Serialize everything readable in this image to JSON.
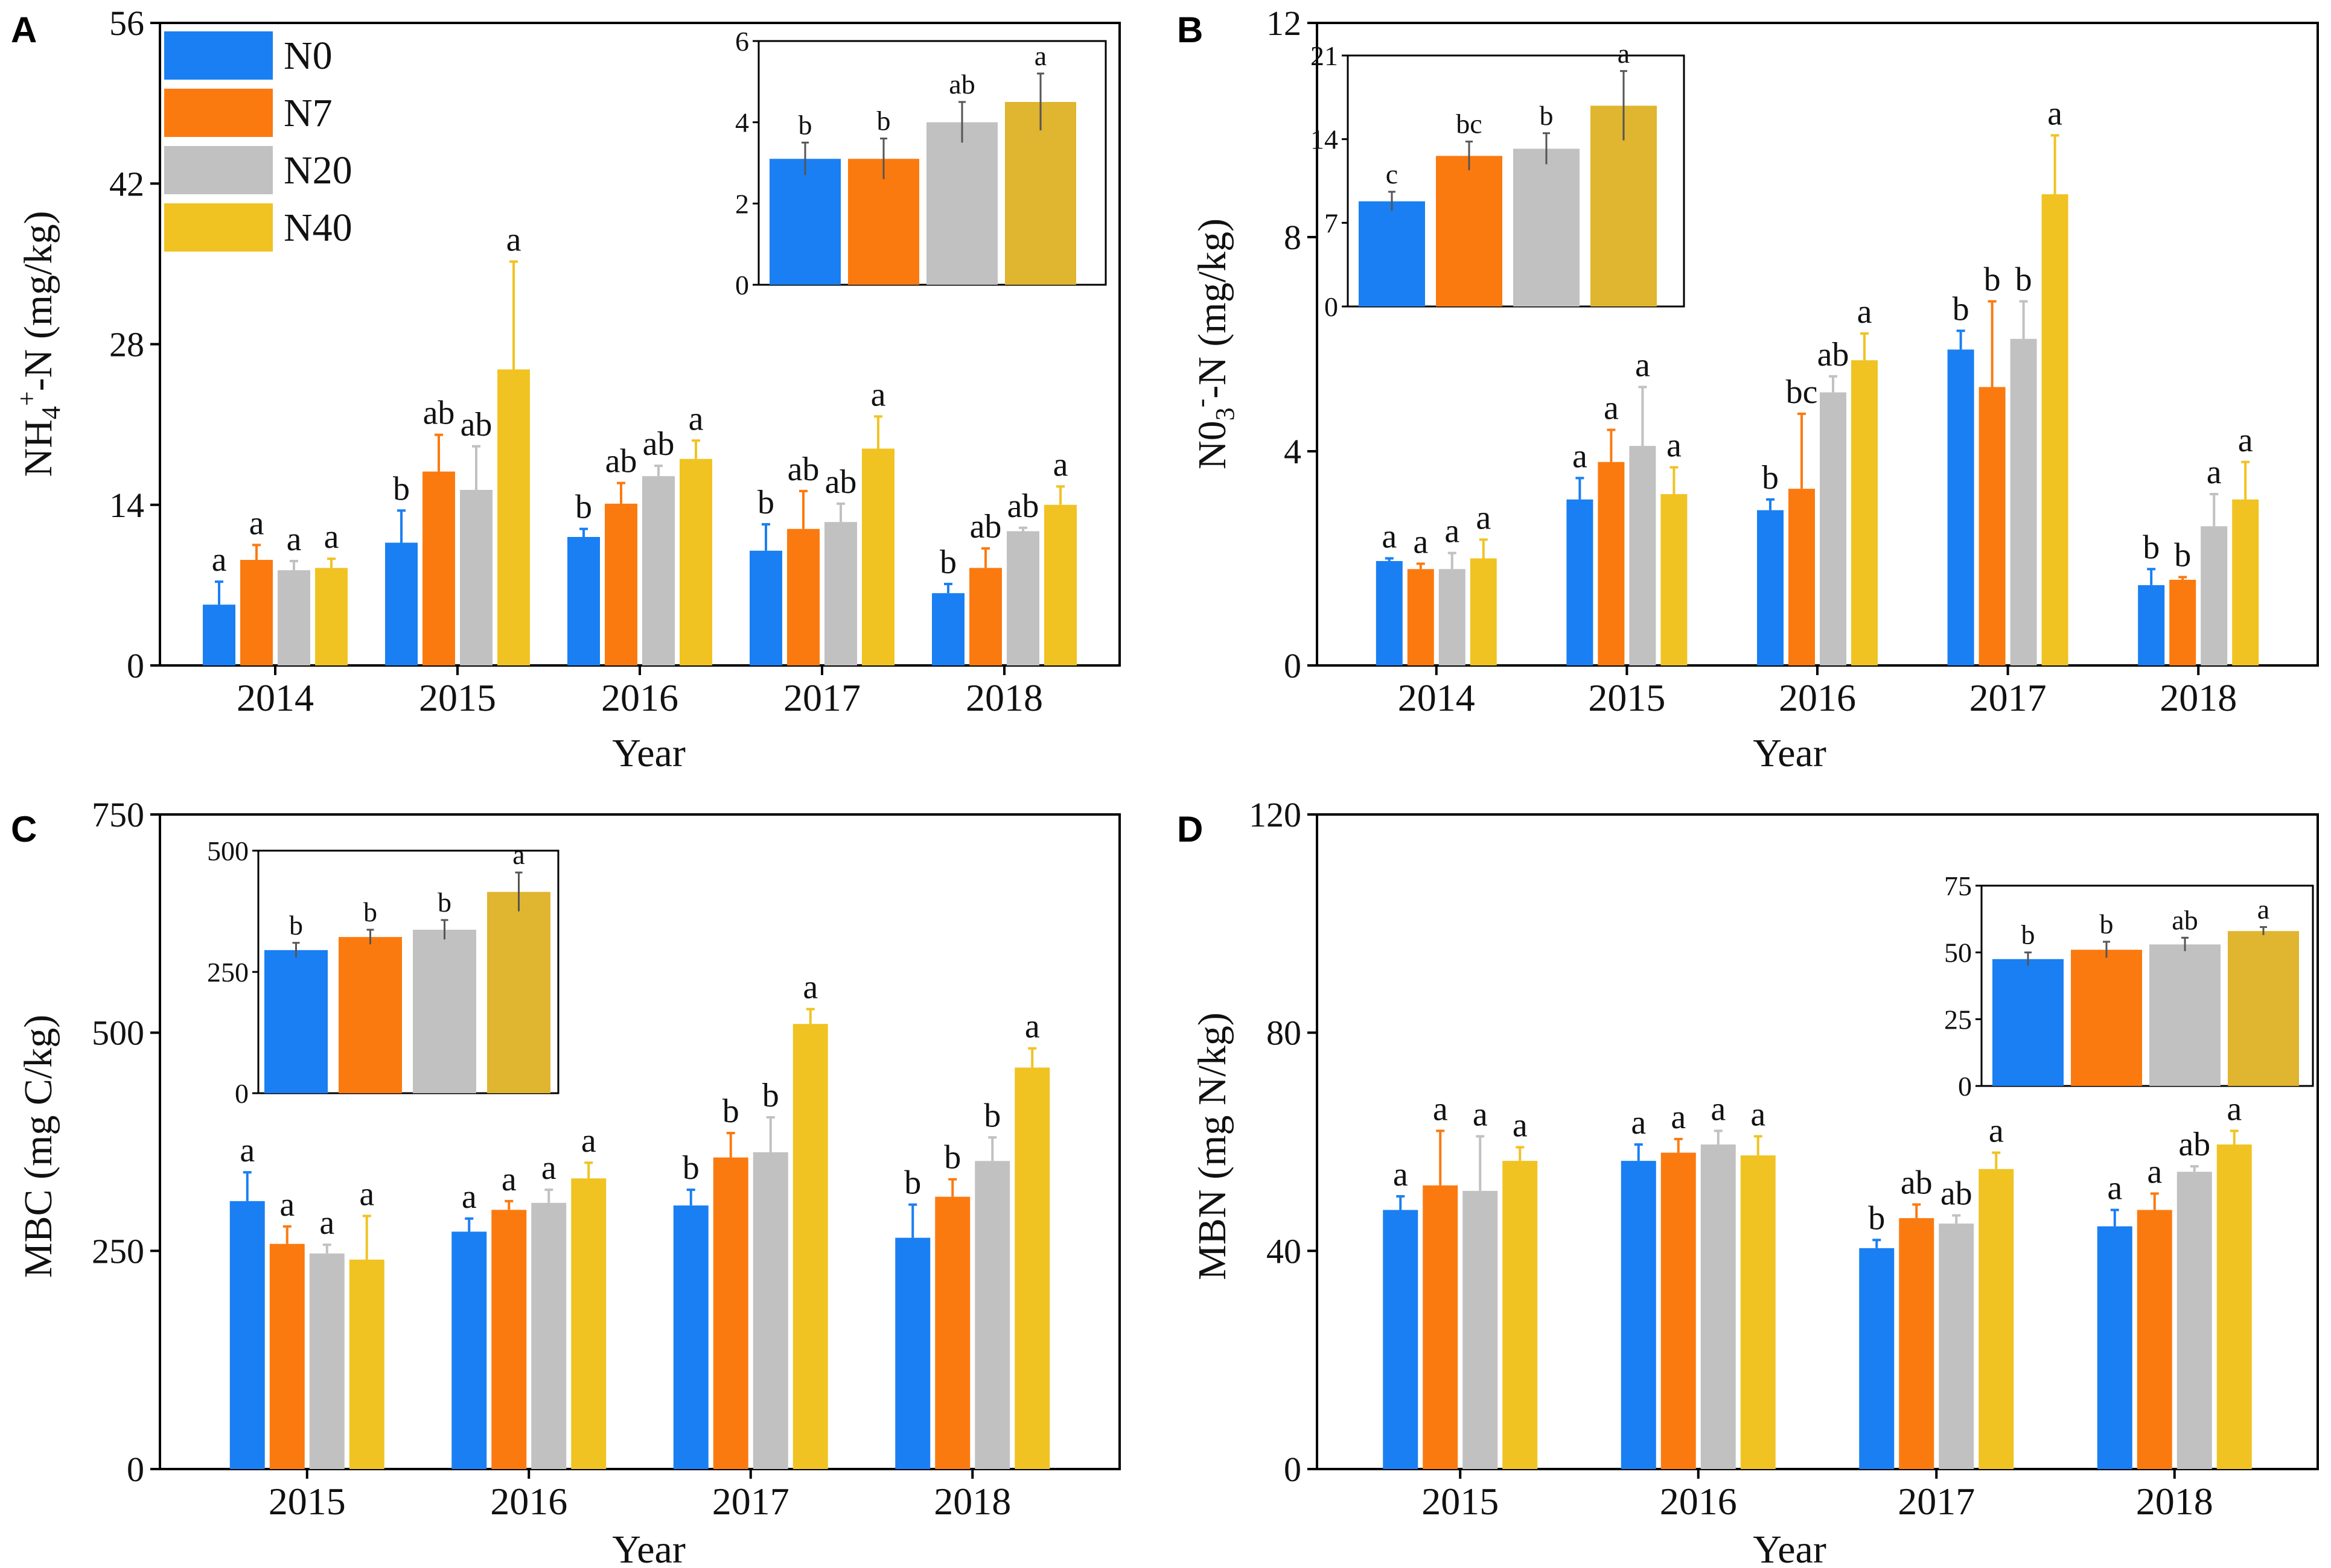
{
  "colors": {
    "N0": "#1a7ff2",
    "N7": "#fb7a10",
    "N20": "#c1c1c1",
    "N40": "#f0c323",
    "N40_inset": "#e0b52f"
  },
  "legend": [
    "N0",
    "N7",
    "N20",
    "N40"
  ],
  "chart_data": [
    {
      "panel": "A",
      "type": "bar",
      "categories": [
        "2014",
        "2015",
        "2016",
        "2017",
        "2018"
      ],
      "xlabel": "Year",
      "ylabel": "NH4+-N (mg/kg)",
      "ylabel_parts": [
        "NH",
        "4",
        "+",
        "-N (mg/kg)"
      ],
      "ylim": [
        0,
        56
      ],
      "yticks": [
        0,
        14,
        28,
        42,
        56
      ],
      "series": [
        {
          "name": "N0",
          "values": [
            5.3,
            10.7,
            11.2,
            10.0,
            6.3
          ],
          "errors": [
            2.0,
            2.8,
            0.7,
            2.3,
            0.8
          ],
          "letters": [
            "a",
            "b",
            "b",
            "b",
            "b"
          ]
        },
        {
          "name": "N7",
          "values": [
            9.2,
            16.9,
            14.1,
            11.9,
            8.5
          ],
          "errors": [
            1.3,
            3.2,
            1.8,
            3.3,
            1.7
          ],
          "letters": [
            "a",
            "ab",
            "ab",
            "ab",
            "ab"
          ]
        },
        {
          "name": "N20",
          "values": [
            8.3,
            15.3,
            16.5,
            12.5,
            11.7
          ],
          "errors": [
            0.8,
            3.8,
            0.9,
            1.6,
            0.3
          ],
          "letters": [
            "a",
            "ab",
            "ab",
            "ab",
            "ab"
          ]
        },
        {
          "name": "N40",
          "values": [
            8.5,
            25.8,
            18.0,
            18.9,
            14.0
          ],
          "errors": [
            0.8,
            9.4,
            1.6,
            2.8,
            1.6
          ],
          "letters": [
            "a",
            "a",
            "a",
            "a",
            "a"
          ]
        }
      ],
      "inset": {
        "ylim": [
          0,
          6
        ],
        "yticks": [
          0,
          2,
          4,
          6
        ],
        "values": [
          3.1,
          3.1,
          4.0,
          4.5
        ],
        "errors": [
          0.4,
          0.5,
          0.5,
          0.7
        ],
        "letters": [
          "b",
          "b",
          "ab",
          "a"
        ]
      }
    },
    {
      "panel": "B",
      "type": "bar",
      "categories": [
        "2014",
        "2015",
        "2016",
        "2017",
        "2018"
      ],
      "xlabel": "Year",
      "ylabel": "N03--N (mg/kg)",
      "ylabel_parts": [
        "N0",
        "3",
        "-",
        "-N (mg/kg)"
      ],
      "ylim": [
        0,
        12
      ],
      "yticks": [
        0,
        4,
        8,
        12
      ],
      "series": [
        {
          "name": "N0",
          "values": [
            1.95,
            3.1,
            2.9,
            5.9,
            1.5
          ],
          "errors": [
            0.05,
            0.4,
            0.2,
            0.35,
            0.3
          ],
          "letters": [
            "a",
            "a",
            "b",
            "b",
            "b"
          ]
        },
        {
          "name": "N7",
          "values": [
            1.8,
            3.8,
            3.3,
            5.2,
            1.6
          ],
          "errors": [
            0.1,
            0.6,
            1.4,
            1.6,
            0.05
          ],
          "letters": [
            "a",
            "a",
            "bc",
            "b",
            "b"
          ]
        },
        {
          "name": "N20",
          "values": [
            1.8,
            4.1,
            5.1,
            6.1,
            2.6
          ],
          "errors": [
            0.3,
            1.1,
            0.3,
            0.7,
            0.6
          ],
          "letters": [
            "a",
            "a",
            "ab",
            "b",
            "a"
          ]
        },
        {
          "name": "N40",
          "values": [
            2.0,
            3.2,
            5.7,
            8.8,
            3.1
          ],
          "errors": [
            0.35,
            0.5,
            0.5,
            1.1,
            0.7
          ],
          "letters": [
            "a",
            "a",
            "a",
            "a",
            "a"
          ]
        }
      ],
      "inset": {
        "ylim": [
          0,
          21
        ],
        "yticks": [
          0,
          7,
          14,
          21
        ],
        "values": [
          8.8,
          12.6,
          13.2,
          16.8
        ],
        "errors": [
          0.8,
          1.2,
          1.3,
          2.9
        ],
        "letters": [
          "c",
          "bc",
          "b",
          "a"
        ]
      }
    },
    {
      "panel": "C",
      "type": "bar",
      "categories": [
        "2015",
        "2016",
        "2017",
        "2018"
      ],
      "xlabel": "Year",
      "ylabel": "MBC (mg C/kg)",
      "ylim": [
        0,
        750
      ],
      "yticks": [
        0,
        250,
        500,
        750
      ],
      "series": [
        {
          "name": "N0",
          "values": [
            307,
            272,
            302,
            265
          ],
          "errors": [
            33,
            15,
            18,
            38
          ],
          "letters": [
            "a",
            "a",
            "b",
            "b"
          ]
        },
        {
          "name": "N7",
          "values": [
            258,
            297,
            357,
            312
          ],
          "errors": [
            20,
            10,
            28,
            20
          ],
          "letters": [
            "a",
            "a",
            "b",
            "b"
          ]
        },
        {
          "name": "N20",
          "values": [
            247,
            305,
            363,
            353
          ],
          "errors": [
            10,
            15,
            40,
            27
          ],
          "letters": [
            "a",
            "a",
            "b",
            "b"
          ]
        },
        {
          "name": "N40",
          "values": [
            240,
            333,
            510,
            460
          ],
          "errors": [
            50,
            18,
            17,
            22
          ],
          "letters": [
            "a",
            "a",
            "a",
            "a"
          ]
        }
      ],
      "inset": {
        "ylim": [
          0,
          500
        ],
        "yticks": [
          0,
          250,
          500
        ],
        "values": [
          295,
          322,
          337,
          415
        ],
        "errors": [
          15,
          15,
          20,
          40
        ],
        "letters": [
          "b",
          "b",
          "b",
          "a"
        ]
      }
    },
    {
      "panel": "D",
      "type": "bar",
      "categories": [
        "2015",
        "2016",
        "2017",
        "2018"
      ],
      "xlabel": "Year",
      "ylabel": "MBN (mg N/kg)",
      "ylim": [
        0,
        120
      ],
      "yticks": [
        0,
        40,
        80,
        120
      ],
      "series": [
        {
          "name": "N0",
          "values": [
            47.5,
            56.5,
            40.5,
            44.5
          ],
          "errors": [
            2.5,
            3.0,
            1.5,
            3.0
          ],
          "letters": [
            "a",
            "a",
            "b",
            "a"
          ]
        },
        {
          "name": "N7",
          "values": [
            52,
            58,
            46,
            47.5
          ],
          "errors": [
            10,
            2.5,
            2.5,
            3.0
          ],
          "letters": [
            "a",
            "a",
            "ab",
            "a"
          ]
        },
        {
          "name": "N20",
          "values": [
            51,
            59.5,
            45,
            54.5
          ],
          "errors": [
            10,
            2.5,
            1.5,
            1.0
          ],
          "letters": [
            "a",
            "a",
            "ab",
            "ab"
          ]
        },
        {
          "name": "N40",
          "values": [
            56.5,
            57.5,
            55,
            59.5
          ],
          "errors": [
            2.5,
            3.5,
            3.0,
            2.5
          ],
          "letters": [
            "a",
            "a",
            "a",
            "a"
          ]
        }
      ],
      "inset": {
        "ylim": [
          0,
          75
        ],
        "yticks": [
          0,
          25,
          50,
          75
        ],
        "values": [
          47.5,
          51,
          53,
          58
        ],
        "errors": [
          2.5,
          3.0,
          2.5,
          1.5
        ],
        "letters": [
          "b",
          "b",
          "ab",
          "a"
        ]
      }
    }
  ]
}
